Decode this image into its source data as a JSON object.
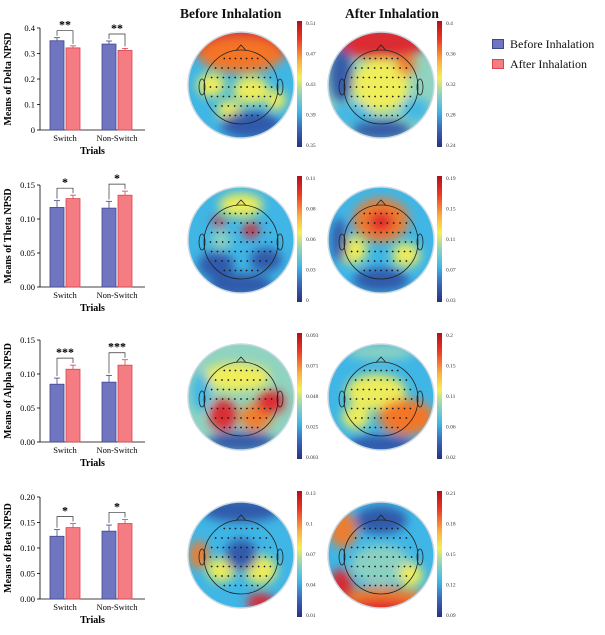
{
  "headers": {
    "before": "Before Inhalation",
    "after": "After Inhalation"
  },
  "legend": [
    {
      "label": "Before Inhalation",
      "color": "#6f76bf"
    },
    {
      "label": "After Inhalation",
      "color": "#f47c82"
    }
  ],
  "colors": {
    "before_fill": "#6f76bf",
    "before_stroke": "#3f4690",
    "after_fill": "#f47c82",
    "after_stroke": "#d9454d",
    "head_outline": "#222222"
  },
  "chart_data": [
    {
      "type": "bar",
      "band": "Delta",
      "ylabel": "Means of Delta NPSD",
      "xlabel": "Trials",
      "categories": [
        "Switch",
        "Non-Switch"
      ],
      "ylim": [
        0,
        0.4
      ],
      "yticks": [
        "0",
        "0.1",
        "0.2",
        "0.3",
        "0.4"
      ],
      "series": [
        {
          "name": "Before Inhalation",
          "values": [
            0.35,
            0.337
          ],
          "errors": [
            0.012,
            0.012
          ]
        },
        {
          "name": "After Inhalation",
          "values": [
            0.322,
            0.312
          ],
          "errors": [
            0.008,
            0.008
          ]
        }
      ],
      "significance": [
        "**",
        "**"
      ],
      "topomap_before": {
        "scale": [
          "0.51",
          "0.47",
          "0.43",
          "0.39",
          "0.35"
        ]
      },
      "topomap_after": {
        "scale": [
          "0.4",
          "0.36",
          "0.32",
          "0.28",
          "0.24"
        ]
      }
    },
    {
      "type": "bar",
      "band": "Theta",
      "ylabel": "Means of Theta NPSD",
      "xlabel": "Trials",
      "categories": [
        "Switch",
        "Non-Switch"
      ],
      "ylim": [
        0,
        0.15
      ],
      "yticks": [
        "0.00",
        "0.05",
        "0.10",
        "0.15"
      ],
      "series": [
        {
          "name": "Before Inhalation",
          "values": [
            0.117,
            0.116
          ],
          "errors": [
            0.01,
            0.01
          ]
        },
        {
          "name": "After Inhalation",
          "values": [
            0.13,
            0.135
          ],
          "errors": [
            0.005,
            0.006
          ]
        }
      ],
      "significance": [
        "*",
        "*"
      ],
      "topomap_before": {
        "scale": [
          "0.11",
          "0.08",
          "0.06",
          "0.03",
          "0"
        ]
      },
      "topomap_after": {
        "scale": [
          "0.19",
          "0.15",
          "0.11",
          "0.07",
          "0.03"
        ]
      }
    },
    {
      "type": "bar",
      "band": "Alpha",
      "ylabel": "Means of Alpha NPSD",
      "xlabel": "Trials",
      "categories": [
        "Switch",
        "Non-Switch"
      ],
      "ylim": [
        0,
        0.15
      ],
      "yticks": [
        "0.00",
        "0.05",
        "0.10",
        "0.15"
      ],
      "series": [
        {
          "name": "Before Inhalation",
          "values": [
            0.085,
            0.088
          ],
          "errors": [
            0.009,
            0.01
          ]
        },
        {
          "name": "After Inhalation",
          "values": [
            0.107,
            0.113
          ],
          "errors": [
            0.006,
            0.008
          ]
        }
      ],
      "significance": [
        "***",
        "***"
      ],
      "topomap_before": {
        "scale": [
          "0.093",
          "0.071",
          "0.048",
          "0.025",
          "0.003"
        ]
      },
      "topomap_after": {
        "scale": [
          "0.2",
          "0.15",
          "0.11",
          "0.06",
          "0.02"
        ]
      }
    },
    {
      "type": "bar",
      "band": "Beta",
      "ylabel": "Means of Beta NPSD",
      "xlabel": "Trials",
      "categories": [
        "Switch",
        "Non-Switch"
      ],
      "ylim": [
        0,
        0.2
      ],
      "yticks": [
        "0.00",
        "0.05",
        "0.10",
        "0.15",
        "0.20"
      ],
      "series": [
        {
          "name": "Before Inhalation",
          "values": [
            0.123,
            0.133
          ],
          "errors": [
            0.013,
            0.012
          ]
        },
        {
          "name": "After Inhalation",
          "values": [
            0.14,
            0.148
          ],
          "errors": [
            0.008,
            0.008
          ]
        }
      ],
      "significance": [
        "*",
        "*"
      ],
      "topomap_before": {
        "scale": [
          "0.13",
          "0.1",
          "0.07",
          "0.04",
          "0.01"
        ]
      },
      "topomap_after": {
        "scale": [
          "0.21",
          "0.18",
          "0.15",
          "0.12",
          "0.09"
        ]
      }
    }
  ]
}
